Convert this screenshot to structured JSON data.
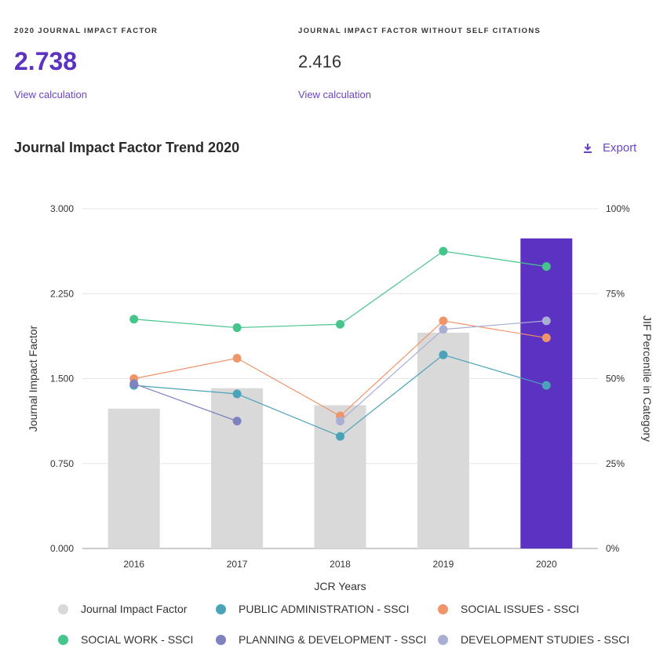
{
  "metrics": [
    {
      "label": "2020 JOURNAL IMPACT FACTOR",
      "value": "2.738",
      "link": "View calculation"
    },
    {
      "label": "JOURNAL IMPACT FACTOR WITHOUT SELF CITATIONS",
      "value": "2.416",
      "link": "View calculation"
    }
  ],
  "trend": {
    "title": "Journal Impact Factor Trend 2020",
    "export_label": "Export"
  },
  "colors": {
    "accent": "#5b32c1",
    "bar_default": "#d9d9d9",
    "grid": "#e6e6e6",
    "axis": "#999999"
  },
  "chart_data": {
    "type": "bar",
    "title": "Journal Impact Factor Trend 2020",
    "xlabel": "JCR Years",
    "ylabel": "Journal Impact Factor",
    "y2label": "JIF Percentile in Category",
    "categories": [
      "2016",
      "2017",
      "2018",
      "2019",
      "2020"
    ],
    "ylim": [
      0,
      3
    ],
    "y_ticks": [
      "0.000",
      "0.750",
      "1.500",
      "2.250",
      "3.000"
    ],
    "y_tick_values": [
      0,
      0.75,
      1.5,
      2.25,
      3
    ],
    "y2lim": [
      0,
      100
    ],
    "y2_ticks": [
      "0%",
      "25%",
      "50%",
      "75%",
      "100%"
    ],
    "y2_tick_values": [
      0,
      25,
      50,
      75,
      100
    ],
    "bars": {
      "name": "Journal Impact Factor",
      "values": [
        1.235,
        1.415,
        1.265,
        1.905,
        2.738
      ],
      "highlight_index": 4,
      "color": "#d9d9d9"
    },
    "series": [
      {
        "name": "PUBLIC ADMINISTRATION - SSCI",
        "color": "#4aa3b8",
        "values": [
          48,
          45.5,
          33,
          57,
          48
        ]
      },
      {
        "name": "SOCIAL ISSUES - SSCI",
        "color": "#f0956a",
        "values": [
          50,
          56,
          39,
          67,
          62
        ]
      },
      {
        "name": "SOCIAL WORK - SSCI",
        "color": "#45c48c",
        "values": [
          67.5,
          65,
          66,
          87.5,
          83
        ]
      },
      {
        "name": "PLANNING & DEVELOPMENT - SSCI",
        "color": "#7e82c0",
        "values": [
          48.5,
          37.5,
          null,
          null,
          null
        ]
      },
      {
        "name": "DEVELOPMENT STUDIES - SSCI",
        "color": "#a9aed3",
        "values": [
          null,
          null,
          37.5,
          64.5,
          67
        ]
      }
    ],
    "legend": [
      {
        "name": "Journal Impact Factor",
        "color": "#d9d9d9"
      },
      {
        "name": "PUBLIC ADMINISTRATION - SSCI",
        "color": "#4aa3b8"
      },
      {
        "name": "SOCIAL ISSUES - SSCI",
        "color": "#f0956a"
      },
      {
        "name": "SOCIAL WORK - SSCI",
        "color": "#45c48c"
      },
      {
        "name": "PLANNING & DEVELOPMENT - SSCI",
        "color": "#7e82c0"
      },
      {
        "name": "DEVELOPMENT STUDIES - SSCI",
        "color": "#a9aed3"
      }
    ]
  }
}
